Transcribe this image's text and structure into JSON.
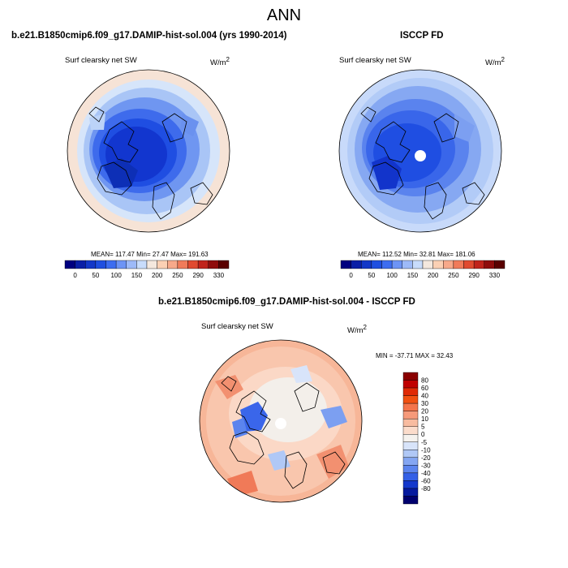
{
  "page_title": "ANN",
  "panels": [
    {
      "title": "b.e21.B1850cmip6.f09_g17.DAMIP-hist-sol.004 (yrs 1990-2014)",
      "variable": "Surf clearsky net SW",
      "units": "W/m",
      "units_sup": "2",
      "stats": "MEAN= 117.47  Min=  27.47  Max= 191.63"
    },
    {
      "title": "ISCCP FD",
      "variable": "Surf clearsky net SW",
      "units": "W/m",
      "units_sup": "2",
      "stats": "MEAN= 112.52  Min=  32.81  Max= 181.06"
    },
    {
      "title": "b.e21.B1850cmip6.f09_g17.DAMIP-hist-sol.004 - ISCCP FD",
      "variable": "Surf clearsky net SW",
      "units": "W/m",
      "units_sup": "2",
      "stats": "MIN = -37.71  MAX =  32.43"
    }
  ],
  "colorbar_abs": {
    "colors": [
      "#00007f",
      "#0a1fa6",
      "#1338c8",
      "#1f4fe0",
      "#3d6df0",
      "#6d94f5",
      "#9dbaf8",
      "#c8dcfb",
      "#f4e8de",
      "#fbd0b4",
      "#f7a98a",
      "#f07b5a",
      "#e04a30",
      "#c0231b",
      "#8f0c0c",
      "#5a0000"
    ],
    "labels": [
      "0",
      "50",
      "100",
      "150",
      "200",
      "250",
      "290",
      "330"
    ]
  },
  "colorbar_diff": {
    "colors": [
      "#8a0000",
      "#c00000",
      "#e02a05",
      "#f15010",
      "#f4744a",
      "#f69a7a",
      "#f8bca0",
      "#fbdccb",
      "#f5f2ee",
      "#d8e4fa",
      "#b0c8f6",
      "#84a6f2",
      "#5b84ee",
      "#335fe6",
      "#1438cc",
      "#061a9e",
      "#00006e"
    ],
    "labels": [
      "80",
      "60",
      "40",
      "30",
      "20",
      "10",
      "5",
      "0",
      "-5",
      "-10",
      "-20",
      "-30",
      "-40",
      "-60",
      "-80"
    ]
  }
}
